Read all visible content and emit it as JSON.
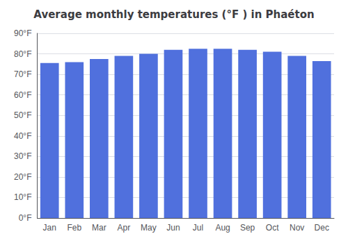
{
  "chart_data": {
    "type": "bar",
    "title": "Average monthly temperatures (°F ) in Phaéton",
    "categories": [
      "Jan",
      "Feb",
      "Mar",
      "Apr",
      "May",
      "Jun",
      "Jul",
      "Aug",
      "Sep",
      "Oct",
      "Nov",
      "Dec"
    ],
    "values": [
      75.5,
      76.0,
      77.5,
      79.0,
      80.0,
      82.0,
      82.5,
      82.5,
      82.0,
      81.0,
      79.0,
      76.5
    ],
    "ylim": [
      0,
      90
    ],
    "yticks": [
      {
        "value": 0,
        "label": "0°F"
      },
      {
        "value": 10,
        "label": "10°F"
      },
      {
        "value": 20,
        "label": "20°F"
      },
      {
        "value": 30,
        "label": "30°F"
      },
      {
        "value": 40,
        "label": "40°F"
      },
      {
        "value": 50,
        "label": "50°F"
      },
      {
        "value": 60,
        "label": "60°F"
      },
      {
        "value": 70,
        "label": "70°F"
      },
      {
        "value": 80,
        "label": "80°F"
      },
      {
        "value": 90,
        "label": "90°F"
      }
    ],
    "grid": true
  }
}
